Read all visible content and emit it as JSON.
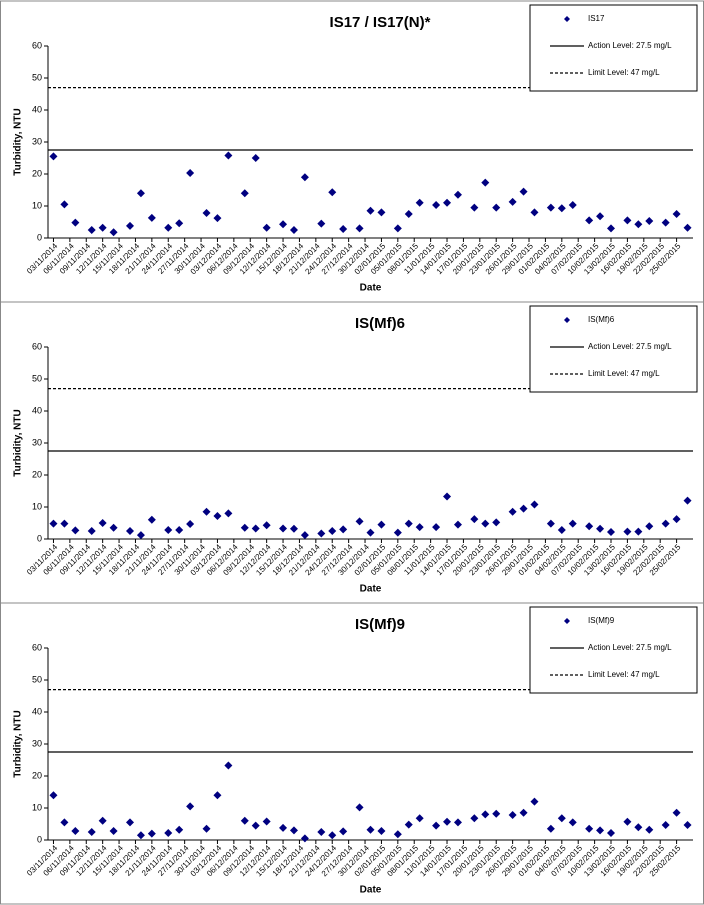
{
  "chart_data": [
    {
      "type": "scatter",
      "title": "IS17 / IS17(N)*",
      "x_label": "Date",
      "y_label": "Turbidity, NTU",
      "xlim": [
        "02/11/2014",
        "28/02/2015"
      ],
      "xticks": [
        "03/11/2014",
        "06/11/2014",
        "09/11/2014",
        "12/11/2014",
        "15/11/2014",
        "18/11/2014",
        "21/11/2014",
        "24/11/2014",
        "27/11/2014",
        "30/11/2014",
        "03/12/2014",
        "06/12/2014",
        "09/12/2014",
        "12/12/2014",
        "15/12/2014",
        "18/12/2014",
        "21/12/2014",
        "24/12/2014",
        "27/12/2014",
        "30/12/2014",
        "02/01/2015",
        "05/01/2015",
        "08/01/2015",
        "11/01/2015",
        "14/01/2015",
        "17/01/2015",
        "20/01/2015",
        "23/01/2015",
        "26/01/2015",
        "29/01/2015",
        "01/02/2015",
        "04/02/2015",
        "07/02/2015",
        "10/02/2015",
        "13/02/2015",
        "16/02/2015",
        "19/02/2015",
        "22/02/2015",
        "25/02/2015"
      ],
      "ylim": [
        0,
        60
      ],
      "yticks": [
        0,
        10,
        20,
        30,
        40,
        50,
        60
      ],
      "x": [
        "03/11/2014",
        "05/11/2014",
        "07/11/2014",
        "10/11/2014",
        "12/11/2014",
        "14/11/2014",
        "17/11/2014",
        "19/11/2014",
        "21/11/2014",
        "24/11/2014",
        "26/11/2014",
        "28/11/2014",
        "01/12/2014",
        "03/12/2014",
        "05/12/2014",
        "08/12/2014",
        "10/12/2014",
        "12/12/2014",
        "15/12/2014",
        "17/12/2014",
        "19/12/2014",
        "22/12/2014",
        "24/12/2014",
        "26/12/2014",
        "29/12/2014",
        "31/12/2014",
        "02/01/2015",
        "05/01/2015",
        "07/01/2015",
        "09/01/2015",
        "12/01/2015",
        "14/01/2015",
        "16/01/2015",
        "19/01/2015",
        "21/01/2015",
        "23/01/2015",
        "26/01/2015",
        "28/01/2015",
        "30/01/2015",
        "02/02/2015",
        "04/02/2015",
        "06/02/2015",
        "09/02/2015",
        "11/02/2015",
        "13/02/2015",
        "16/02/2015",
        "18/02/2015",
        "20/02/2015",
        "23/02/2015",
        "25/02/2015",
        "27/02/2015"
      ],
      "series": [
        {
          "name": "IS17",
          "color": "#000080",
          "values": [
            25.5,
            10.5,
            4.8,
            2.5,
            3.2,
            1.8,
            3.8,
            14,
            6.3,
            3.2,
            4.6,
            20.3,
            7.8,
            6.2,
            25.8,
            14,
            25,
            3.2,
            4.3,
            2.5,
            19,
            4.5,
            14.3,
            2.8,
            3,
            8.5,
            8,
            3,
            7.5,
            11,
            10.3,
            11,
            13.5,
            9.5,
            17.3,
            9.5,
            11.3,
            14.5,
            8,
            9.5,
            9.3,
            10.3,
            5.5,
            6.8,
            3,
            5.5,
            4.3,
            5.3,
            4.8,
            7.5,
            3.2
          ]
        }
      ],
      "reference_lines": [
        {
          "label": "Action Level: 27.5 mg/L",
          "value": 27.5,
          "style": "solid",
          "color": "#000000"
        },
        {
          "label": "Limit Level: 47 mg/L",
          "value": 47,
          "style": "dashed",
          "color": "#000000"
        }
      ]
    },
    {
      "type": "scatter",
      "title": "IS(Mf)6",
      "x_label": "Date",
      "y_label": "Turbidity, NTU",
      "xlim": [
        "02/11/2014",
        "28/02/2015"
      ],
      "xticks": [
        "03/11/2014",
        "06/11/2014",
        "09/11/2014",
        "12/11/2014",
        "15/11/2014",
        "18/11/2014",
        "21/11/2014",
        "24/11/2014",
        "27/11/2014",
        "30/11/2014",
        "03/12/2014",
        "06/12/2014",
        "09/12/2014",
        "12/12/2014",
        "15/12/2014",
        "18/12/2014",
        "21/12/2014",
        "24/12/2014",
        "27/12/2014",
        "30/12/2014",
        "02/01/2015",
        "05/01/2015",
        "08/01/2015",
        "11/01/2015",
        "14/01/2015",
        "17/01/2015",
        "20/01/2015",
        "23/01/2015",
        "26/01/2015",
        "29/01/2015",
        "01/02/2015",
        "04/02/2015",
        "07/02/2015",
        "10/02/2015",
        "13/02/2015",
        "16/02/2015",
        "19/02/2015",
        "22/02/2015",
        "25/02/2015"
      ],
      "ylim": [
        0,
        60
      ],
      "yticks": [
        0,
        10,
        20,
        30,
        40,
        50,
        60
      ],
      "x": [
        "03/11/2014",
        "05/11/2014",
        "07/11/2014",
        "10/11/2014",
        "12/11/2014",
        "14/11/2014",
        "17/11/2014",
        "19/11/2014",
        "21/11/2014",
        "24/11/2014",
        "26/11/2014",
        "28/11/2014",
        "01/12/2014",
        "03/12/2014",
        "05/12/2014",
        "08/12/2014",
        "10/12/2014",
        "12/12/2014",
        "15/12/2014",
        "17/12/2014",
        "19/12/2014",
        "22/12/2014",
        "24/12/2014",
        "26/12/2014",
        "29/12/2014",
        "31/12/2014",
        "02/01/2015",
        "05/01/2015",
        "07/01/2015",
        "09/01/2015",
        "12/01/2015",
        "14/01/2015",
        "16/01/2015",
        "19/01/2015",
        "21/01/2015",
        "23/01/2015",
        "26/01/2015",
        "28/01/2015",
        "30/01/2015",
        "02/02/2015",
        "04/02/2015",
        "06/02/2015",
        "09/02/2015",
        "11/02/2015",
        "13/02/2015",
        "16/02/2015",
        "18/02/2015",
        "20/02/2015",
        "23/02/2015",
        "25/02/2015",
        "27/02/2015"
      ],
      "series": [
        {
          "name": "IS(Mf)6",
          "color": "#000080",
          "values": [
            4.8,
            4.8,
            2.7,
            2.5,
            5,
            3.5,
            2.5,
            1.2,
            6,
            2.8,
            2.8,
            4.7,
            8.5,
            7.2,
            8,
            3.5,
            3.3,
            4.3,
            3.3,
            3.2,
            1.2,
            1.7,
            2.5,
            3,
            5.5,
            2,
            4.5,
            2,
            4.8,
            3.7,
            3.7,
            13.3,
            4.5,
            6.2,
            4.8,
            5.2,
            8.5,
            9.5,
            10.8,
            4.8,
            2.8,
            4.8,
            4,
            3.2,
            2.2,
            2.3,
            2.3,
            4,
            4.8,
            6.2,
            12
          ]
        }
      ],
      "reference_lines": [
        {
          "label": "Action Level: 27.5 mg/L",
          "value": 27.5,
          "style": "solid",
          "color": "#000000"
        },
        {
          "label": "Limit Level: 47 mg/L",
          "value": 47,
          "style": "dashed",
          "color": "#000000"
        }
      ]
    },
    {
      "type": "scatter",
      "title": "IS(Mf)9",
      "x_label": "Date",
      "y_label": "Turbidity, NTU",
      "xlim": [
        "02/11/2014",
        "28/02/2015"
      ],
      "xticks": [
        "03/11/2014",
        "06/11/2014",
        "09/11/2014",
        "12/11/2014",
        "15/11/2014",
        "18/11/2014",
        "21/11/2014",
        "24/11/2014",
        "27/11/2014",
        "30/11/2014",
        "03/12/2014",
        "06/12/2014",
        "09/12/2014",
        "12/12/2014",
        "15/12/2014",
        "18/12/2014",
        "21/12/2014",
        "24/12/2014",
        "27/12/2014",
        "30/12/2014",
        "02/01/2015",
        "05/01/2015",
        "08/01/2015",
        "11/01/2015",
        "14/01/2015",
        "17/01/2015",
        "20/01/2015",
        "23/01/2015",
        "26/01/2015",
        "29/01/2015",
        "01/02/2015",
        "04/02/2015",
        "07/02/2015",
        "10/02/2015",
        "13/02/2015",
        "16/02/2015",
        "19/02/2015",
        "22/02/2015",
        "25/02/2015"
      ],
      "ylim": [
        0,
        60
      ],
      "yticks": [
        0,
        10,
        20,
        30,
        40,
        50,
        60
      ],
      "x": [
        "03/11/2014",
        "05/11/2014",
        "07/11/2014",
        "10/11/2014",
        "12/11/2014",
        "14/11/2014",
        "17/11/2014",
        "19/11/2014",
        "21/11/2014",
        "24/11/2014",
        "26/11/2014",
        "28/11/2014",
        "01/12/2014",
        "03/12/2014",
        "05/12/2014",
        "08/12/2014",
        "10/12/2014",
        "12/12/2014",
        "15/12/2014",
        "17/12/2014",
        "19/12/2014",
        "22/12/2014",
        "24/12/2014",
        "26/12/2014",
        "29/12/2014",
        "31/12/2014",
        "02/01/2015",
        "05/01/2015",
        "07/01/2015",
        "09/01/2015",
        "12/01/2015",
        "14/01/2015",
        "16/01/2015",
        "19/01/2015",
        "21/01/2015",
        "23/01/2015",
        "26/01/2015",
        "28/01/2015",
        "30/01/2015",
        "02/02/2015",
        "04/02/2015",
        "06/02/2015",
        "09/02/2015",
        "11/02/2015",
        "13/02/2015",
        "16/02/2015",
        "18/02/2015",
        "20/02/2015",
        "23/02/2015",
        "25/02/2015",
        "27/02/2015"
      ],
      "series": [
        {
          "name": "IS(Mf)9",
          "color": "#000080",
          "values": [
            14,
            5.5,
            2.8,
            2.5,
            6,
            2.8,
            5.5,
            1.5,
            2,
            2.2,
            3.2,
            10.5,
            3.5,
            14,
            23.3,
            6,
            4.5,
            5.8,
            3.8,
            3,
            0.5,
            2.5,
            1.5,
            2.7,
            10.2,
            3.2,
            2.8,
            1.8,
            4.8,
            6.8,
            4.5,
            5.7,
            5.5,
            6.8,
            8,
            8.2,
            7.8,
            8.5,
            12,
            3.5,
            6.8,
            5.5,
            3.5,
            3,
            2.2,
            5.7,
            4,
            3.2,
            4.7,
            8.5,
            4.7
          ]
        }
      ],
      "reference_lines": [
        {
          "label": "Action Level: 27.5 mg/L",
          "value": 27.5,
          "style": "solid",
          "color": "#000000"
        },
        {
          "label": "Limit Level: 47 mg/L",
          "value": 47,
          "style": "dashed",
          "color": "#000000"
        }
      ]
    }
  ]
}
